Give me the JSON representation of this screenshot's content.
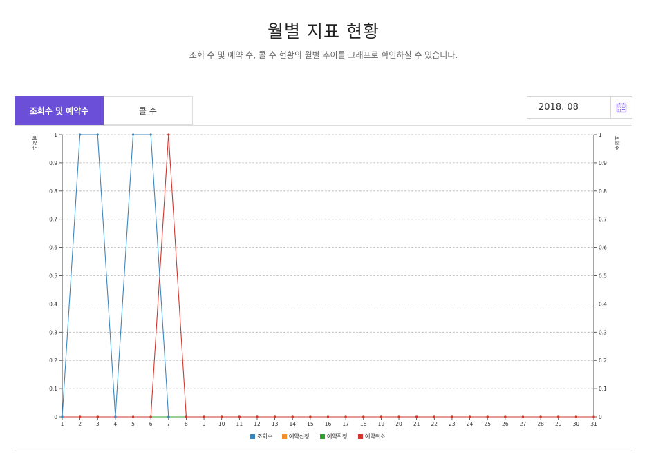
{
  "header": {
    "title": "월별 지표 현황",
    "subtitle": "조회 수 및 예약 수, 콜 수 현황의 월별 추이를 그래프로 확인하실 수 있습니다."
  },
  "tabs": [
    {
      "label": "조회수 및 예약수",
      "active": true
    },
    {
      "label": "콜 수",
      "active": false
    }
  ],
  "date_picker": {
    "value": "2018. 08",
    "icon": "calendar-icon"
  },
  "colors": {
    "accent": "#6b4fd8"
  },
  "chart_data": {
    "type": "line",
    "title": "",
    "ylabel_left": "예약수",
    "ylabel_right": "조회수",
    "x": [
      1,
      2,
      3,
      4,
      5,
      6,
      7,
      8,
      9,
      10,
      11,
      12,
      13,
      14,
      15,
      16,
      17,
      18,
      19,
      20,
      21,
      22,
      23,
      24,
      25,
      26,
      27,
      28,
      29,
      30,
      31
    ],
    "ylim": [
      0,
      1
    ],
    "yticks": [
      "0",
      "0.1",
      "0.2",
      "0.3",
      "0.4",
      "0.5",
      "0.6",
      "0.7",
      "0.8",
      "0.9",
      "1"
    ],
    "grid": true,
    "legend_position": "bottom",
    "series": [
      {
        "name": "조회수",
        "color": "#3b87bd",
        "values": [
          0,
          1,
          1,
          0,
          1,
          1,
          0,
          null,
          null,
          null,
          null,
          null,
          null,
          null,
          null,
          null,
          null,
          null,
          null,
          null,
          null,
          null,
          null,
          null,
          null,
          null,
          null,
          null,
          null,
          null,
          null
        ]
      },
      {
        "name": "예약신청",
        "color": "#f28e2b",
        "values": [
          0,
          0,
          0,
          0,
          0,
          0,
          0,
          0,
          0,
          0,
          0,
          0,
          0,
          0,
          0,
          0,
          0,
          0,
          0,
          0,
          0,
          0,
          0,
          0,
          0,
          0,
          0,
          0,
          0,
          0,
          0
        ]
      },
      {
        "name": "예약확정",
        "color": "#2ca02c",
        "values": [
          0,
          0,
          0,
          0,
          0,
          0,
          0,
          0,
          0,
          0,
          0,
          0,
          0,
          0,
          0,
          0,
          0,
          0,
          0,
          0,
          0,
          0,
          0,
          0,
          0,
          0,
          0,
          0,
          0,
          0,
          0
        ]
      },
      {
        "name": "예약취소",
        "color": "#d0362e",
        "values": [
          0,
          0,
          0,
          0,
          0,
          0,
          1,
          0,
          0,
          0,
          0,
          0,
          0,
          0,
          0,
          0,
          0,
          0,
          0,
          0,
          0,
          0,
          0,
          0,
          0,
          0,
          0,
          0,
          0,
          0,
          0
        ]
      }
    ]
  }
}
